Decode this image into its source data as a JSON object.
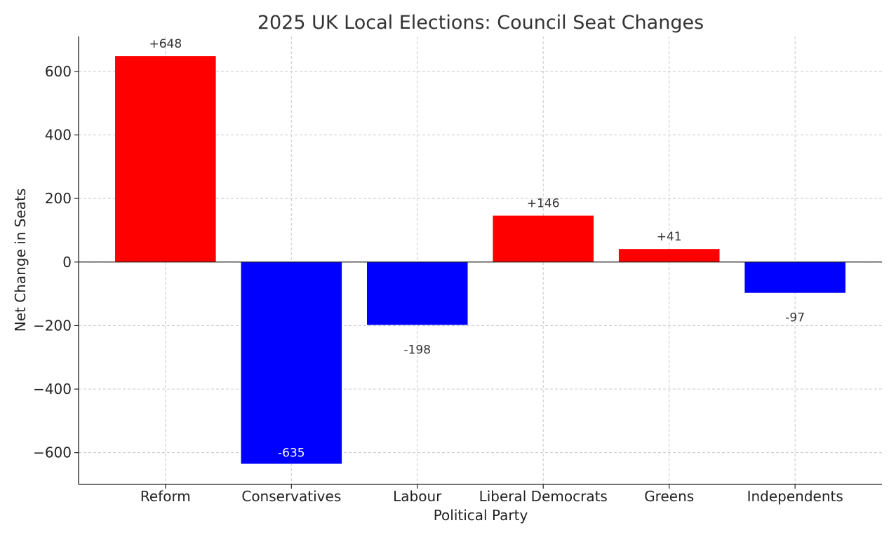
{
  "chart_data": {
    "type": "bar",
    "title": "2025 UK Local Elections: Council Seat Changes",
    "xlabel": "Political Party",
    "ylabel": "Net Change in Seats",
    "categories": [
      "Reform",
      "Conservatives",
      "Labour",
      "Liberal Democrats",
      "Greens",
      "Independents"
    ],
    "values": [
      648,
      -635,
      -198,
      146,
      41,
      -97
    ],
    "data_labels": [
      "+648",
      "-635",
      "-198",
      "+146",
      "+41",
      "-97"
    ],
    "colors": {
      "positive": "#ff0000",
      "negative": "#0000ff"
    },
    "ylim": [
      -700,
      710
    ],
    "yticks": [
      -600,
      -400,
      -200,
      0,
      200,
      400,
      600
    ],
    "ytick_labels": [
      "−600",
      "−400",
      "−200",
      "0",
      "200",
      "400",
      "600"
    ],
    "grid": true,
    "zero_line": true
  }
}
